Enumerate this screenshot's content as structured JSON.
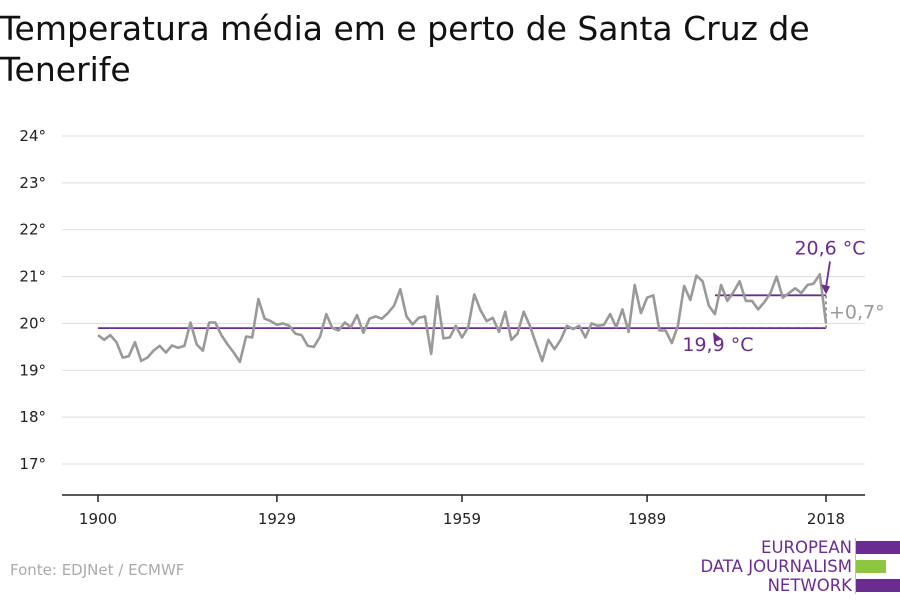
{
  "title": "Temperatura média em e perto de Santa Cruz de Tenerife",
  "source": "Fonte: EDJNet / ECMWF",
  "logo": {
    "line1": "EUROPEAN",
    "line2": "DATA JOURNALISM",
    "line3": "NETWORK"
  },
  "colors": {
    "series": "#999999",
    "accent": "#6a2c91",
    "green": "#8dc63f",
    "grid": "#dddddd",
    "axis": "#222222"
  },
  "chart_data": {
    "type": "line",
    "title": "Temperatura média em e perto de Santa Cruz de Tenerife",
    "xlabel": "",
    "ylabel": "",
    "xlim": [
      1900,
      2018
    ],
    "ylim": [
      16.5,
      24.5
    ],
    "x_ticks": [
      1900,
      1929,
      1959,
      1989,
      2018
    ],
    "y_ticks": [
      {
        "value": 17,
        "label": "17°"
      },
      {
        "value": 18,
        "label": "18°"
      },
      {
        "value": 19,
        "label": "19°"
      },
      {
        "value": 20,
        "label": "20°"
      },
      {
        "value": 21,
        "label": "21°"
      },
      {
        "value": 22,
        "label": "22°"
      },
      {
        "value": 23,
        "label": "23°"
      },
      {
        "value": 24,
        "label": "24°"
      }
    ],
    "grid": true,
    "series": [
      {
        "x_start": 1900,
        "values": [
          19.75,
          19.65,
          19.75,
          19.6,
          19.27,
          19.3,
          19.6,
          19.2,
          19.27,
          19.42,
          19.52,
          19.38,
          19.53,
          19.48,
          19.52,
          20.02,
          19.55,
          19.42,
          20.02,
          20.02,
          19.75,
          19.55,
          19.38,
          19.18,
          19.72,
          19.7,
          20.52,
          20.1,
          20.05,
          19.97,
          20.0,
          19.95,
          19.78,
          19.75,
          19.52,
          19.5,
          19.72,
          20.2,
          19.9,
          19.85,
          20.02,
          19.92,
          20.18,
          19.8,
          20.1,
          20.15,
          20.1,
          20.22,
          20.38,
          20.73,
          20.15,
          19.98,
          20.12,
          20.15,
          19.35,
          20.58,
          19.68,
          19.7,
          19.95,
          19.7,
          19.92,
          20.62,
          20.28,
          20.05,
          20.12,
          19.82,
          20.25,
          19.65,
          19.78,
          20.25,
          19.95,
          19.57,
          19.2,
          19.65,
          19.45,
          19.65,
          19.95,
          19.88,
          19.95,
          19.7,
          20.0,
          19.95,
          19.97,
          20.2,
          19.92,
          20.3,
          19.82,
          20.82,
          20.22,
          20.55,
          20.6,
          19.85,
          19.85,
          19.58,
          19.95,
          20.8,
          20.5,
          21.02,
          20.9,
          20.38,
          20.2,
          20.82,
          20.48,
          20.67,
          20.9,
          20.48,
          20.48,
          20.3,
          20.45,
          20.65,
          21.0,
          20.55,
          20.65,
          20.75,
          20.65,
          20.82,
          20.85,
          21.05,
          20.0
        ]
      }
    ],
    "reference_lines": [
      {
        "value": 19.9,
        "x_from": 1900,
        "x_to": 2018,
        "label": "19,9 °C"
      },
      {
        "value": 20.6,
        "x_from": 2000,
        "x_to": 2018,
        "label": "20,6 °C"
      }
    ],
    "difference_label": "+0,7°"
  }
}
